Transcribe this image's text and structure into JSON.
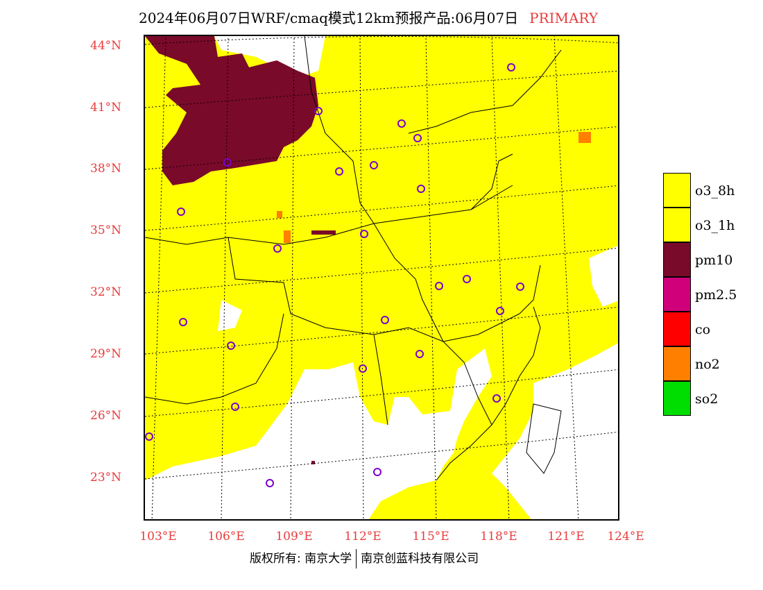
{
  "header": {
    "title": "2024年06月07日WRF/cmaq模式12km预报产品:06月07日",
    "tag": "PRIMARY"
  },
  "map": {
    "fill_default": "#ffff00",
    "latitudes": [
      "44°N",
      "41°N",
      "38°N",
      "35°N",
      "32°N",
      "29°N",
      "26°N",
      "23°N"
    ],
    "longitudes": [
      "103°E",
      "106°E",
      "109°E",
      "112°E",
      "115°E",
      "118°E",
      "121°E",
      "124°E"
    ]
  },
  "legend": {
    "items": [
      {
        "label": "o3_8h",
        "color": "#ffff00"
      },
      {
        "label": "o3_1h",
        "color": "#ffff00"
      },
      {
        "label": "pm10",
        "color": "#7a0a2a"
      },
      {
        "label": "pm2.5",
        "color": "#d0007a"
      },
      {
        "label": "co",
        "color": "#ff0000"
      },
      {
        "label": "no2",
        "color": "#ff8000"
      },
      {
        "label": "so2",
        "color": "#00dd00"
      }
    ]
  },
  "footer": {
    "left": "版权所有: 南京大学",
    "right": "南京创蓝科技有限公司"
  }
}
